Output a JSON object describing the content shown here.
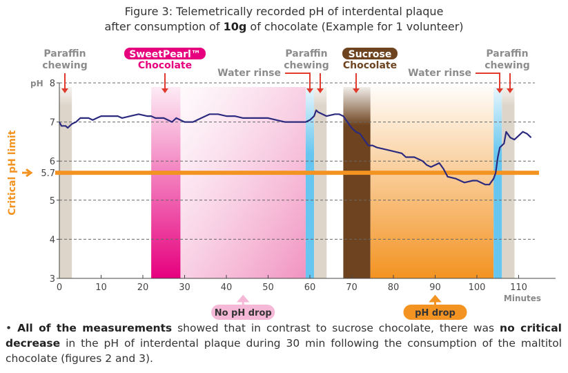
{
  "chart_data": {
    "type": "line",
    "title": {
      "line1": "Figure 3: Telemetrically recorded pH of interdental plaque",
      "line2_pre": "after consumption of ",
      "line2_bold": "10g",
      "line2_post": " of chocolate (Example for 1 volunteer)"
    },
    "ylabel": "pH",
    "xlabel": "Minutes",
    "xlim": [
      0,
      118
    ],
    "ylim": [
      3,
      8
    ],
    "xticks": [
      0,
      10,
      20,
      30,
      40,
      50,
      60,
      70,
      80,
      90,
      100,
      110
    ],
    "yticks": [
      3,
      4,
      5,
      6,
      7,
      8
    ],
    "grid": "horizontal dashed",
    "critical_limit": {
      "value": 5.7,
      "label": "5.7",
      "side_label": "Critical pH limit",
      "color": "#f39322"
    },
    "series": [
      {
        "color": "#2b2a7f",
        "x": [
          0,
          0.5,
          1.5,
          2,
          3,
          4,
          5,
          7,
          8,
          9,
          10,
          12,
          14,
          15,
          17,
          19,
          21,
          22,
          23,
          25,
          26,
          27,
          28,
          29,
          30,
          32,
          34,
          36,
          38,
          40,
          42,
          44,
          46,
          48,
          50,
          52,
          54,
          56,
          58,
          59,
          60,
          61,
          61.5,
          62,
          63,
          64,
          66,
          67,
          68,
          69,
          70,
          71,
          72,
          73,
          74,
          75,
          76,
          78,
          80,
          82,
          83,
          85,
          87,
          88,
          89,
          91,
          92,
          93,
          95,
          96,
          97,
          99,
          100,
          102,
          103,
          104,
          104.5,
          105,
          105.5,
          106.5,
          107,
          108,
          109,
          110,
          111,
          112,
          113
        ],
        "y": [
          7.0,
          6.9,
          6.9,
          6.85,
          6.95,
          7.0,
          7.1,
          7.1,
          7.05,
          7.1,
          7.15,
          7.15,
          7.15,
          7.1,
          7.15,
          7.2,
          7.15,
          7.15,
          7.1,
          7.1,
          7.05,
          7.0,
          7.1,
          7.05,
          7.0,
          7.0,
          7.1,
          7.2,
          7.2,
          7.15,
          7.15,
          7.1,
          7.1,
          7.1,
          7.1,
          7.05,
          7.0,
          7.0,
          7.0,
          7.0,
          7.05,
          7.15,
          7.3,
          7.25,
          7.2,
          7.15,
          7.2,
          7.2,
          7.15,
          7.0,
          6.85,
          6.75,
          6.7,
          6.55,
          6.4,
          6.4,
          6.35,
          6.3,
          6.25,
          6.2,
          6.1,
          6.1,
          6.0,
          5.9,
          5.85,
          5.95,
          5.8,
          5.6,
          5.55,
          5.5,
          5.45,
          5.5,
          5.5,
          5.4,
          5.4,
          5.55,
          5.7,
          6.1,
          6.35,
          6.45,
          6.75,
          6.6,
          6.55,
          6.65,
          6.75,
          6.7,
          6.6
        ]
      }
    ],
    "bands": [
      {
        "from": 0,
        "to": 3,
        "kind": "paraffin",
        "color": "#ddd5c9"
      },
      {
        "from": 22,
        "to": 29,
        "kind": "sweetpearl",
        "color": "#e6007e"
      },
      {
        "from": 29,
        "to": 59,
        "kind": "sweetpearl-after",
        "color": "#f2a6cc"
      },
      {
        "from": 59,
        "to": 61,
        "kind": "water",
        "color": "#67c6ef"
      },
      {
        "from": 61,
        "to": 64,
        "kind": "paraffin",
        "color": "#ddd5c9"
      },
      {
        "from": 68,
        "to": 74.5,
        "kind": "sucrose",
        "color": "#6e4420"
      },
      {
        "from": 74.5,
        "to": 104,
        "kind": "sucrose-after",
        "color": "#f39322"
      },
      {
        "from": 104,
        "to": 106,
        "kind": "water",
        "color": "#67c6ef"
      },
      {
        "from": 106,
        "to": 109,
        "kind": "paraffin",
        "color": "#ddd5c9"
      }
    ],
    "annotations": {
      "paraffin1": [
        "Paraffin",
        "chewing"
      ],
      "sweetpearl": {
        "badge": "SweetPearl™",
        "sub": "Chocolate",
        "color": "#e6007e"
      },
      "water1": "Water rinse",
      "paraffin2": [
        "Paraffin",
        "chewing"
      ],
      "sucrose": {
        "badge": "Sucrose",
        "sub": "Chocolate",
        "color": "#6e4420"
      },
      "water2": "Water rinse",
      "paraffin3": [
        "Paraffin",
        "chewing"
      ],
      "no_drop": {
        "label": "No pH drop",
        "at": 44
      },
      "drop": {
        "label": "pH drop",
        "at": 90
      }
    }
  },
  "note": {
    "bullet": "•",
    "b1": "All of the measurements",
    "t1": " showed that in contrast to sucrose chocolate, there was ",
    "b2": "no critical decrease",
    "t2": " in the pH of interdental plaque during 30 min following the consumption of the maltitol chocolate (figures 2 and 3)."
  }
}
